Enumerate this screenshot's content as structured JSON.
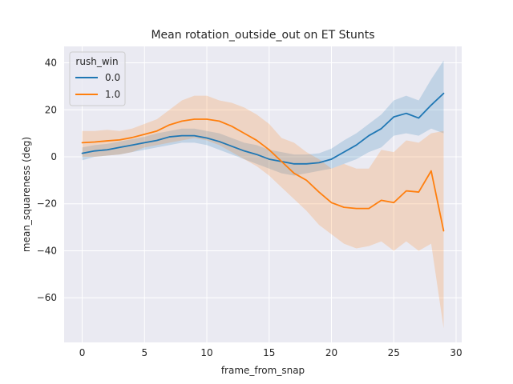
{
  "chart_data": {
    "type": "line",
    "title": "Mean rotation_outside_out on ET Stunts",
    "xlabel": "frame_from_snap",
    "ylabel": "mean_squareness (deg)",
    "xlim": [
      -1.45,
      30.45
    ],
    "ylim": [
      -79,
      47
    ],
    "xticks": [
      0,
      5,
      10,
      15,
      20,
      25,
      30
    ],
    "yticks": [
      -60,
      -40,
      -20,
      0,
      20,
      40
    ],
    "grid": true,
    "legend": {
      "title": "rush_win",
      "placement": "top-left"
    },
    "colors": {
      "0.0": "#1f77b4",
      "1.0": "#ff7f0e",
      "background": "#eaeaf2",
      "grid": "#ffffff"
    },
    "x": [
      0,
      1,
      2,
      3,
      4,
      5,
      6,
      7,
      8,
      9,
      10,
      11,
      12,
      13,
      14,
      15,
      16,
      17,
      18,
      19,
      20,
      21,
      22,
      23,
      24,
      25,
      26,
      27,
      28,
      29
    ],
    "series": [
      {
        "name": "0.0",
        "values": [
          1.5,
          2.5,
          3,
          4,
          5,
          6,
          7,
          8.5,
          9,
          9,
          8,
          6.5,
          4.5,
          2.5,
          1,
          -1,
          -2,
          -3,
          -3,
          -2.5,
          -1,
          2,
          5,
          9,
          12,
          17,
          18.5,
          16.5,
          22,
          27
        ],
        "ci_low": [
          -1.5,
          0,
          0.5,
          1,
          2,
          3,
          4,
          5,
          6,
          6,
          5,
          3,
          1,
          -1,
          -3,
          -5,
          -7,
          -8,
          -7,
          -6,
          -5,
          -3,
          -1,
          2,
          4,
          9,
          10,
          9,
          12,
          10
        ],
        "ci_high": [
          4,
          5,
          5.5,
          6.5,
          7.5,
          8.5,
          10,
          11,
          12,
          12,
          11,
          10,
          8,
          6,
          5,
          3,
          2,
          1,
          1,
          1.5,
          3.5,
          7,
          10,
          14,
          18,
          24,
          26,
          24,
          33,
          41
        ]
      },
      {
        "name": "1.0",
        "values": [
          6,
          6.3,
          6.8,
          7.2,
          8.2,
          9.6,
          11,
          13.6,
          15.2,
          16,
          16,
          15.2,
          13,
          10,
          7,
          3,
          -2,
          -7,
          -10,
          -15,
          -19.5,
          -21.5,
          -22,
          -22,
          -18.5,
          -19.5,
          -14.5,
          -15,
          -6,
          -31.5
        ],
        "ci_low": [
          0,
          0,
          0.5,
          1,
          2,
          4,
          5,
          6,
          7,
          8,
          7,
          5,
          2,
          -1,
          -4,
          -8,
          -13,
          -18,
          -23,
          -29,
          -33,
          -37,
          -39,
          -38,
          -36,
          -40,
          -36,
          -40,
          -37,
          -73
        ],
        "ci_high": [
          11,
          11,
          11.5,
          11,
          12,
          14,
          16,
          20,
          24,
          26,
          26,
          24,
          23,
          21,
          18,
          14,
          8,
          6,
          2,
          -1,
          -5,
          -3,
          -5,
          -5,
          3,
          2,
          7,
          6,
          10,
          11
        ]
      }
    ]
  }
}
